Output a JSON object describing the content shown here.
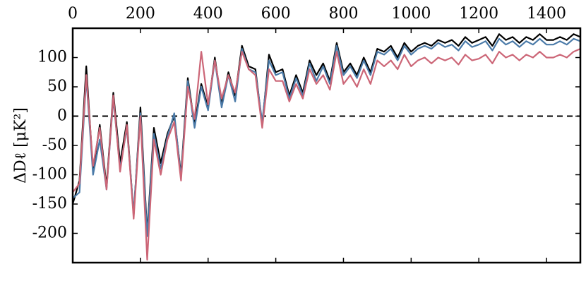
{
  "chart_data": {
    "type": "line",
    "ylabel": "ΔDℓ [μK²]",
    "x": [
      0,
      20,
      40,
      60,
      80,
      100,
      120,
      140,
      160,
      180,
      200,
      220,
      240,
      260,
      280,
      300,
      320,
      340,
      360,
      380,
      400,
      420,
      440,
      460,
      480,
      500,
      520,
      540,
      560,
      580,
      600,
      620,
      640,
      660,
      680,
      700,
      720,
      740,
      760,
      780,
      800,
      820,
      840,
      860,
      880,
      900,
      920,
      940,
      960,
      980,
      1000,
      1020,
      1040,
      1060,
      1080,
      1100,
      1120,
      1140,
      1160,
      1180,
      1200,
      1220,
      1240,
      1260,
      1280,
      1300,
      1320,
      1340,
      1360,
      1380,
      1400,
      1420,
      1440,
      1460,
      1480,
      1500
    ],
    "series": [
      {
        "color": "#000000",
        "values": [
          -150,
          -110,
          85,
          -95,
          -15,
          -120,
          40,
          -80,
          -10,
          -170,
          15,
          -200,
          -20,
          -80,
          -30,
          0,
          -100,
          65,
          -15,
          55,
          15,
          100,
          20,
          75,
          35,
          120,
          85,
          80,
          -15,
          105,
          75,
          80,
          35,
          70,
          40,
          95,
          70,
          90,
          60,
          125,
          75,
          90,
          70,
          100,
          75,
          115,
          110,
          120,
          100,
          125,
          110,
          120,
          125,
          120,
          130,
          125,
          130,
          120,
          135,
          125,
          130,
          135,
          120,
          140,
          130,
          135,
          125,
          135,
          130,
          140,
          130,
          130,
          135,
          130,
          140,
          135
        ]
      },
      {
        "color": "#4a7aa8",
        "values": [
          -140,
          -130,
          65,
          -100,
          -40,
          -125,
          30,
          -90,
          -20,
          -165,
          5,
          -205,
          -30,
          -90,
          -35,
          5,
          -105,
          60,
          -20,
          50,
          10,
          95,
          15,
          70,
          25,
          115,
          80,
          75,
          -10,
          95,
          70,
          75,
          30,
          65,
          35,
          90,
          60,
          85,
          55,
          120,
          70,
          85,
          65,
          95,
          70,
          110,
          105,
          115,
          95,
          120,
          105,
          115,
          120,
          115,
          125,
          118,
          122,
          112,
          128,
          118,
          122,
          128,
          112,
          132,
          122,
          128,
          118,
          128,
          122,
          132,
          122,
          122,
          128,
          122,
          132,
          128
        ]
      },
      {
        "color": "#cc6677",
        "values": [
          -130,
          -115,
          70,
          -85,
          -20,
          -125,
          35,
          -95,
          -15,
          -175,
          0,
          -245,
          -40,
          -100,
          -40,
          -10,
          -110,
          50,
          -5,
          110,
          20,
          95,
          30,
          70,
          40,
          110,
          80,
          70,
          -20,
          80,
          60,
          60,
          25,
          55,
          30,
          80,
          55,
          70,
          45,
          110,
          55,
          70,
          50,
          80,
          55,
          95,
          85,
          95,
          80,
          105,
          85,
          95,
          100,
          90,
          100,
          95,
          100,
          88,
          105,
          95,
          98,
          105,
          90,
          110,
          100,
          105,
          95,
          105,
          100,
          110,
          100,
          100,
          105,
          100,
          110,
          115
        ]
      }
    ],
    "xlim": [
      0,
      1500
    ],
    "xticks": [
      0,
      200,
      400,
      600,
      800,
      1000,
      1200,
      1400
    ],
    "ylim": [
      -250,
      150
    ],
    "yticks": [
      -200,
      -150,
      -100,
      -50,
      0,
      50,
      100
    ],
    "hline": 0
  }
}
